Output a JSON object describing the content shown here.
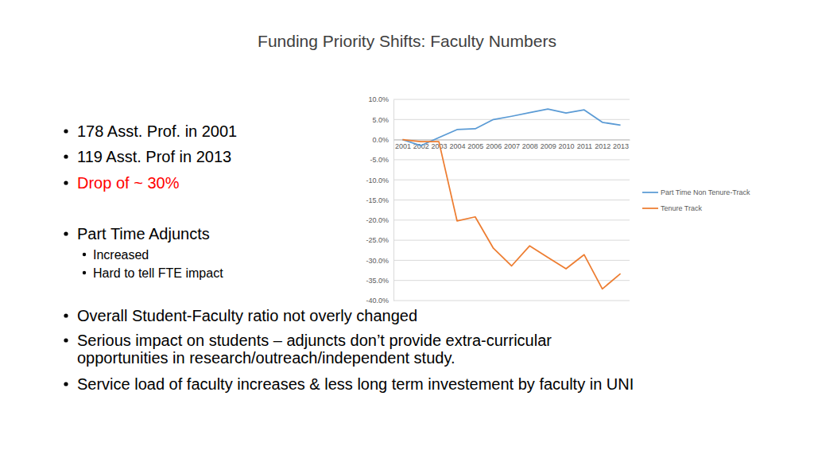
{
  "slide": {
    "title": "Funding Priority Shifts: Faculty Numbers",
    "top_bullets": [
      {
        "lines": [
          "178 Asst. Prof. in 2001"
        ]
      },
      {
        "lines": [
          "119 Asst. Prof in 2013"
        ]
      },
      {
        "lines": [
          "Drop of ~ 30%"
        ],
        "color": "#ff0000"
      },
      {
        "lines": [
          "Part Time Adjuncts"
        ],
        "sub": [
          "Increased",
          "Hard to tell FTE impact"
        ]
      }
    ],
    "bottom_bullets": [
      {
        "lines": [
          "Overall Student-Faculty ratio not overly changed"
        ]
      },
      {
        "lines": [
          "Serious impact on students – adjuncts don’t provide extra-curricular",
          "opportunities in research/outreach/independent study."
        ]
      },
      {
        "lines": [
          "Service load of faculty increases & less long term investement by faculty in UNI"
        ]
      }
    ]
  },
  "chart_data": {
    "type": "line",
    "categories": [
      "2001",
      "2002",
      "2003",
      "2004",
      "2005",
      "2006",
      "2007",
      "2008",
      "2009",
      "2010",
      "2011",
      "2012",
      "2013"
    ],
    "series": [
      {
        "name": "Part Time Non Tenure-Track",
        "color": "#5b9bd5",
        "values": [
          0,
          -1.5,
          0.5,
          2.5,
          2.7,
          5.0,
          5.8,
          6.7,
          7.6,
          6.6,
          7.4,
          4.3,
          3.6
        ]
      },
      {
        "name": "Tenure Track",
        "color": "#ed7d31",
        "values": [
          0,
          -0.5,
          -0.5,
          -20.2,
          -19.2,
          -27.0,
          -31.4,
          -26.4,
          -29.3,
          -32.1,
          -28.6,
          -37.1,
          -33.3
        ]
      }
    ],
    "ylim": [
      -40,
      10
    ],
    "yticks": [
      {
        "value": -40,
        "label": "-40.0%"
      },
      {
        "value": -35,
        "label": "-35.0%"
      },
      {
        "value": -30,
        "label": "-30.0%"
      },
      {
        "value": -25,
        "label": "-25.0%"
      },
      {
        "value": -20,
        "label": "-20.0%"
      },
      {
        "value": -15,
        "label": "-15.0%"
      },
      {
        "value": -10,
        "label": "-10.0%"
      },
      {
        "value": -5,
        "label": "-5.0%"
      },
      {
        "value": 0,
        "label": "0.0%"
      },
      {
        "value": 5,
        "label": "5.0%"
      },
      {
        "value": 10,
        "label": "10.0%"
      }
    ],
    "grid": true,
    "legend": "right"
  }
}
